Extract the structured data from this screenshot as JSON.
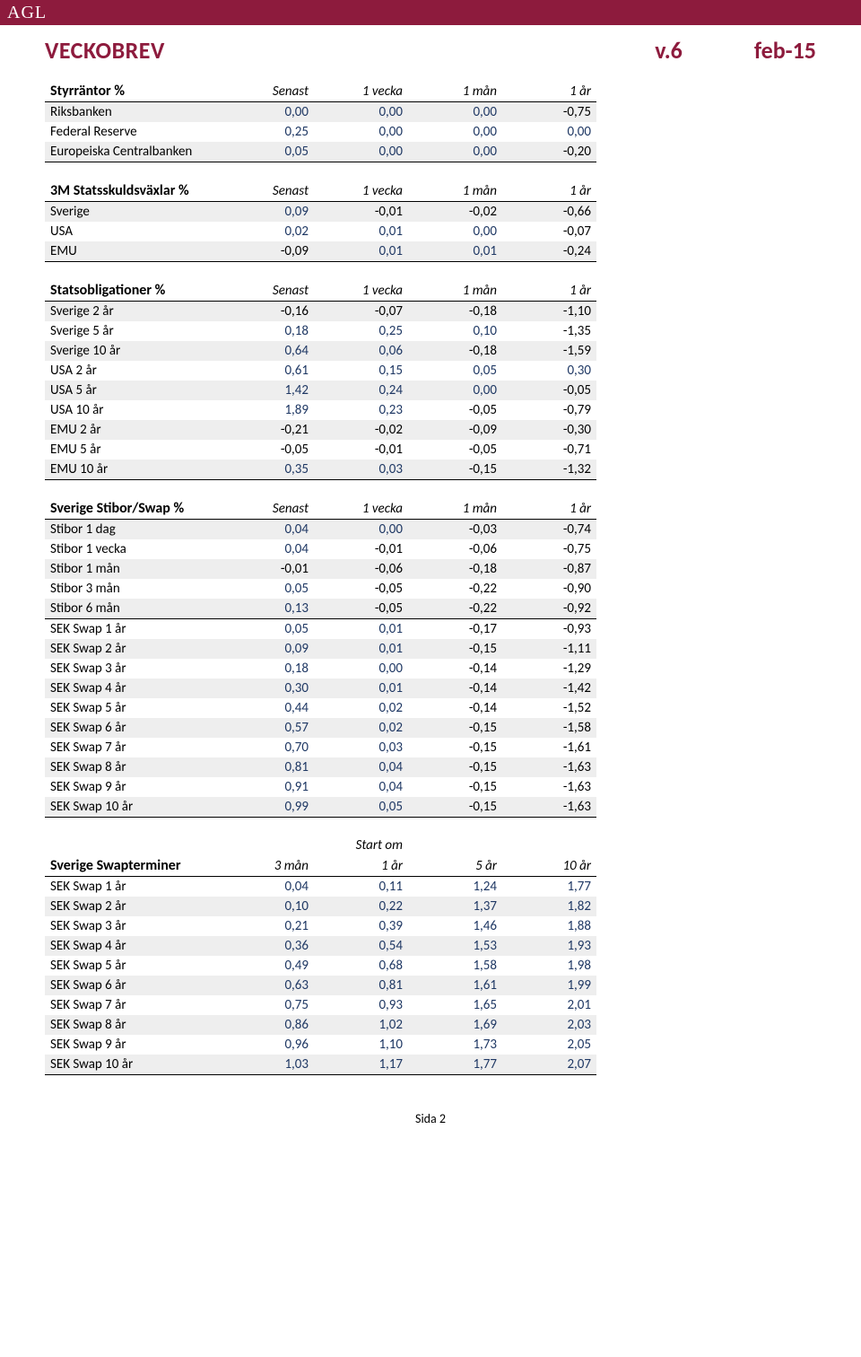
{
  "logo": "AGL",
  "title": "VECKOBREV",
  "version": "v.6",
  "period": "feb-15",
  "tables": {
    "styrrantor": {
      "title": "Styrräntor %",
      "headers": [
        "Senast",
        "1 vecka",
        "1 mån",
        "1 år"
      ],
      "rows": [
        {
          "label": "Riksbanken",
          "shaded": true,
          "underline": false,
          "vals": [
            "0,00",
            "0,00",
            "0,00",
            "-0,75"
          ]
        },
        {
          "label": "Federal Reserve",
          "shaded": false,
          "underline": false,
          "vals": [
            "0,25",
            "0,00",
            "0,00",
            "0,00"
          ]
        },
        {
          "label": "Europeiska Centralbanken",
          "shaded": true,
          "underline": true,
          "vals": [
            "0,05",
            "0,00",
            "0,00",
            "-0,20"
          ]
        }
      ]
    },
    "statsskuld": {
      "title": "3M Statsskuldsväxlar %",
      "headers": [
        "Senast",
        "1 vecka",
        "1 mån",
        "1 år"
      ],
      "rows": [
        {
          "label": "Sverige",
          "shaded": true,
          "underline": false,
          "vals": [
            "0,09",
            "-0,01",
            "-0,02",
            "-0,66"
          ]
        },
        {
          "label": "USA",
          "shaded": false,
          "underline": false,
          "vals": [
            "0,02",
            "0,01",
            "0,00",
            "-0,07"
          ]
        },
        {
          "label": "EMU",
          "shaded": true,
          "underline": true,
          "vals": [
            "-0,09",
            "0,01",
            "0,01",
            "-0,24"
          ]
        }
      ]
    },
    "statsoblig": {
      "title": "Statsobligationer %",
      "headers": [
        "Senast",
        "1 vecka",
        "1 mån",
        "1 år"
      ],
      "rows": [
        {
          "label": "Sverige 2 år",
          "shaded": true,
          "underline": false,
          "vals": [
            "-0,16",
            "-0,07",
            "-0,18",
            "-1,10"
          ]
        },
        {
          "label": "Sverige 5 år",
          "shaded": false,
          "underline": false,
          "vals": [
            "0,18",
            "0,25",
            "0,10",
            "-1,35"
          ]
        },
        {
          "label": "Sverige 10 år",
          "shaded": true,
          "underline": false,
          "vals": [
            "0,64",
            "0,06",
            "-0,18",
            "-1,59"
          ]
        },
        {
          "label": "USA 2 år",
          "shaded": false,
          "underline": false,
          "vals": [
            "0,61",
            "0,15",
            "0,05",
            "0,30"
          ]
        },
        {
          "label": "USA 5 år",
          "shaded": true,
          "underline": false,
          "vals": [
            "1,42",
            "0,24",
            "0,00",
            "-0,05"
          ]
        },
        {
          "label": "USA 10 år",
          "shaded": false,
          "underline": false,
          "vals": [
            "1,89",
            "0,23",
            "-0,05",
            "-0,79"
          ]
        },
        {
          "label": "EMU 2 år",
          "shaded": true,
          "underline": false,
          "vals": [
            "-0,21",
            "-0,02",
            "-0,09",
            "-0,30"
          ]
        },
        {
          "label": "EMU 5 år",
          "shaded": false,
          "underline": false,
          "vals": [
            "-0,05",
            "-0,01",
            "-0,05",
            "-0,71"
          ]
        },
        {
          "label": "EMU 10 år",
          "shaded": true,
          "underline": true,
          "vals": [
            "0,35",
            "0,03",
            "-0,15",
            "-1,32"
          ]
        }
      ]
    },
    "stibor": {
      "title": "Sverige Stibor/Swap %",
      "headers": [
        "Senast",
        "1 vecka",
        "1 mån",
        "1 år"
      ],
      "rows": [
        {
          "label": "Stibor 1 dag",
          "shaded": true,
          "underline": false,
          "vals": [
            "0,04",
            "0,00",
            "-0,03",
            "-0,74"
          ]
        },
        {
          "label": "Stibor 1 vecka",
          "shaded": false,
          "underline": false,
          "vals": [
            "0,04",
            "-0,01",
            "-0,06",
            "-0,75"
          ]
        },
        {
          "label": "Stibor 1 mån",
          "shaded": true,
          "underline": false,
          "vals": [
            "-0,01",
            "-0,06",
            "-0,18",
            "-0,87"
          ]
        },
        {
          "label": "Stibor 3 mån",
          "shaded": false,
          "underline": false,
          "vals": [
            "0,05",
            "-0,05",
            "-0,22",
            "-0,90"
          ]
        },
        {
          "label": "Stibor 6 mån",
          "shaded": true,
          "underline": true,
          "vals": [
            "0,13",
            "-0,05",
            "-0,22",
            "-0,92"
          ]
        },
        {
          "label": "SEK Swap 1 år",
          "shaded": false,
          "underline": false,
          "vals": [
            "0,05",
            "0,01",
            "-0,17",
            "-0,93"
          ]
        },
        {
          "label": "SEK Swap 2 år",
          "shaded": true,
          "underline": false,
          "vals": [
            "0,09",
            "0,01",
            "-0,15",
            "-1,11"
          ]
        },
        {
          "label": "SEK Swap 3 år",
          "shaded": false,
          "underline": false,
          "vals": [
            "0,18",
            "0,00",
            "-0,14",
            "-1,29"
          ]
        },
        {
          "label": "SEK Swap 4 år",
          "shaded": true,
          "underline": false,
          "vals": [
            "0,30",
            "0,01",
            "-0,14",
            "-1,42"
          ]
        },
        {
          "label": "SEK Swap 5 år",
          "shaded": false,
          "underline": false,
          "vals": [
            "0,44",
            "0,02",
            "-0,14",
            "-1,52"
          ]
        },
        {
          "label": "SEK Swap 6 år",
          "shaded": true,
          "underline": false,
          "vals": [
            "0,57",
            "0,02",
            "-0,15",
            "-1,58"
          ]
        },
        {
          "label": "SEK Swap 7 år",
          "shaded": false,
          "underline": false,
          "vals": [
            "0,70",
            "0,03",
            "-0,15",
            "-1,61"
          ]
        },
        {
          "label": "SEK Swap 8 år",
          "shaded": true,
          "underline": false,
          "vals": [
            "0,81",
            "0,04",
            "-0,15",
            "-1,63"
          ]
        },
        {
          "label": "SEK Swap 9 år",
          "shaded": false,
          "underline": false,
          "vals": [
            "0,91",
            "0,04",
            "-0,15",
            "-1,63"
          ]
        },
        {
          "label": "SEK Swap 10 år",
          "shaded": true,
          "underline": true,
          "vals": [
            "0,99",
            "0,05",
            "-0,15",
            "-1,63"
          ]
        }
      ]
    },
    "swapterm": {
      "title": "Sverige Swapterminer",
      "start_om": "Start om",
      "headers": [
        "3 mån",
        "1 år",
        "5 år",
        "10 år"
      ],
      "rows": [
        {
          "label": "SEK Swap 1 år",
          "shaded": false,
          "underline": false,
          "vals": [
            "0,04",
            "0,11",
            "1,24",
            "1,77"
          ]
        },
        {
          "label": "SEK Swap 2 år",
          "shaded": true,
          "underline": false,
          "vals": [
            "0,10",
            "0,22",
            "1,37",
            "1,82"
          ]
        },
        {
          "label": "SEK Swap 3 år",
          "shaded": false,
          "underline": false,
          "vals": [
            "0,21",
            "0,39",
            "1,46",
            "1,88"
          ]
        },
        {
          "label": "SEK Swap 4 år",
          "shaded": true,
          "underline": false,
          "vals": [
            "0,36",
            "0,54",
            "1,53",
            "1,93"
          ]
        },
        {
          "label": "SEK Swap 5 år",
          "shaded": false,
          "underline": false,
          "vals": [
            "0,49",
            "0,68",
            "1,58",
            "1,98"
          ]
        },
        {
          "label": "SEK Swap 6 år",
          "shaded": true,
          "underline": false,
          "vals": [
            "0,63",
            "0,81",
            "1,61",
            "1,99"
          ]
        },
        {
          "label": "SEK Swap 7 år",
          "shaded": false,
          "underline": false,
          "vals": [
            "0,75",
            "0,93",
            "1,65",
            "2,01"
          ]
        },
        {
          "label": "SEK Swap 8 år",
          "shaded": true,
          "underline": false,
          "vals": [
            "0,86",
            "1,02",
            "1,69",
            "2,03"
          ]
        },
        {
          "label": "SEK Swap 9 år",
          "shaded": false,
          "underline": false,
          "vals": [
            "0,96",
            "1,10",
            "1,73",
            "2,05"
          ]
        },
        {
          "label": "SEK Swap 10 år",
          "shaded": true,
          "underline": true,
          "vals": [
            "1,03",
            "1,17",
            "1,77",
            "2,07"
          ]
        }
      ]
    }
  },
  "footer": "Sida 2",
  "colors": {
    "brand": "#8d1b3d",
    "positive": "#1f3864",
    "shade": "#eeeeee",
    "text": "#000000"
  }
}
